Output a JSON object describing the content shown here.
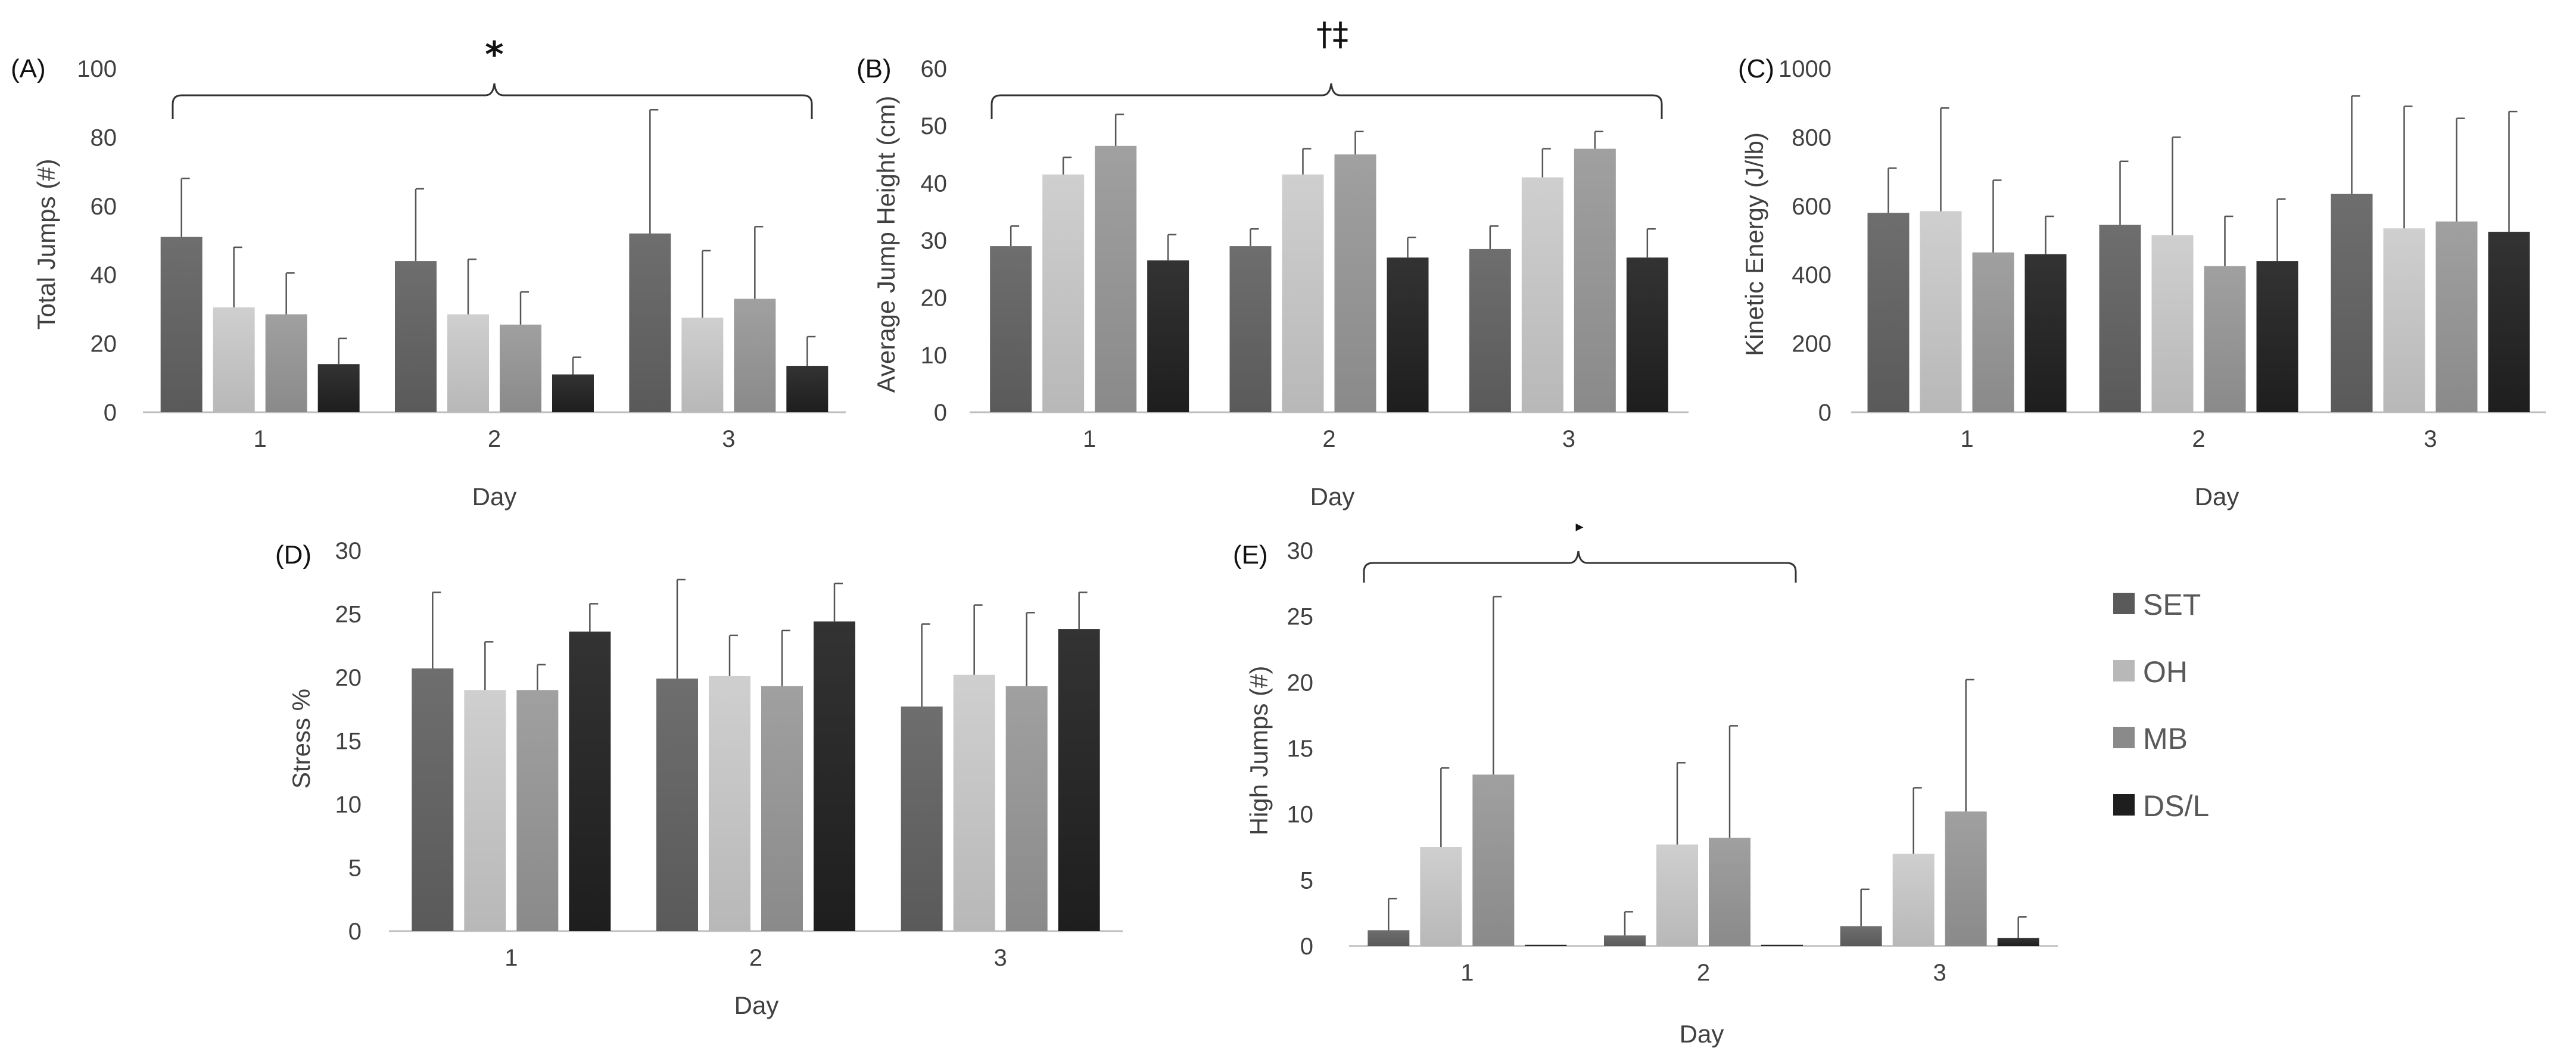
{
  "figure": {
    "legend": [
      {
        "name": "SET",
        "color": "#5a5a5a"
      },
      {
        "name": "OH",
        "color": "#b8b8b8"
      },
      {
        "name": "MB",
        "color": "#8a8a8a"
      },
      {
        "name": "DS/L",
        "color": "#1e1e1e"
      }
    ],
    "bar_gradient_top": {
      "SET": "#6e6e6e",
      "OH": "#cfcfcf",
      "MB": "#a0a0a0",
      "DS/L": "#333333"
    }
  },
  "chart_data": [
    {
      "type": "bar",
      "panel_label": "(A)",
      "xlabel": "Day",
      "ylabel": "Total Jumps (#)",
      "categories": [
        "1",
        "2",
        "3"
      ],
      "ylim": [
        0,
        100
      ],
      "yticks": [
        0,
        20,
        40,
        60,
        80,
        100
      ],
      "series": [
        {
          "name": "SET",
          "values": [
            51,
            44,
            52
          ],
          "errors": [
            17,
            21,
            36
          ]
        },
        {
          "name": "OH",
          "values": [
            30.5,
            28.5,
            27.5
          ],
          "errors": [
            17.5,
            16,
            19.5
          ]
        },
        {
          "name": "MB",
          "values": [
            28.5,
            25.5,
            33
          ],
          "errors": [
            12,
            9.5,
            21
          ]
        },
        {
          "name": "DS/L",
          "values": [
            14,
            11,
            13.5
          ],
          "errors": [
            7.5,
            5,
            8.5
          ]
        }
      ],
      "annotation": "*"
    },
    {
      "type": "bar",
      "panel_label": "(B)",
      "xlabel": "Day",
      "ylabel": "Average Jump Height (cm)",
      "categories": [
        "1",
        "2",
        "3"
      ],
      "ylim": [
        0,
        60
      ],
      "yticks": [
        0,
        10,
        20,
        30,
        40,
        50,
        60
      ],
      "series": [
        {
          "name": "SET",
          "values": [
            29,
            29,
            28.5
          ],
          "errors": [
            3.5,
            3,
            4
          ]
        },
        {
          "name": "OH",
          "values": [
            41.5,
            41.5,
            41
          ],
          "errors": [
            3,
            4.5,
            5
          ]
        },
        {
          "name": "MB",
          "values": [
            46.5,
            45,
            46
          ],
          "errors": [
            5.5,
            4,
            3
          ]
        },
        {
          "name": "DS/L",
          "values": [
            26.5,
            27,
            27
          ],
          "errors": [
            4.5,
            3.5,
            5
          ]
        }
      ],
      "annotation": "†‡"
    },
    {
      "type": "bar",
      "panel_label": "(C)",
      "xlabel": "Day",
      "ylabel": "Kinetic Energy (J/lb)",
      "categories": [
        "1",
        "2",
        "3"
      ],
      "ylim": [
        0,
        1000
      ],
      "yticks": [
        0,
        200,
        400,
        600,
        800,
        1000
      ],
      "series": [
        {
          "name": "SET",
          "values": [
            580,
            545,
            635
          ],
          "errors": [
            130,
            185,
            285
          ]
        },
        {
          "name": "OH",
          "values": [
            585,
            515,
            535
          ],
          "errors": [
            300,
            285,
            355
          ]
        },
        {
          "name": "MB",
          "values": [
            465,
            425,
            555
          ],
          "errors": [
            210,
            145,
            300
          ]
        },
        {
          "name": "DS/L",
          "values": [
            460,
            440,
            525
          ],
          "errors": [
            110,
            180,
            350
          ]
        }
      ]
    },
    {
      "type": "bar",
      "panel_label": "(D)",
      "xlabel": "Day",
      "ylabel": "Stress %",
      "categories": [
        "1",
        "2",
        "3"
      ],
      "ylim": [
        0,
        30
      ],
      "yticks": [
        0,
        5,
        10,
        15,
        20,
        25,
        30
      ],
      "series": [
        {
          "name": "SET",
          "values": [
            20.7,
            19.9,
            17.7
          ],
          "errors": [
            6,
            7.8,
            6.5
          ]
        },
        {
          "name": "OH",
          "values": [
            19,
            20.1,
            20.2
          ],
          "errors": [
            3.8,
            3.2,
            5.5
          ]
        },
        {
          "name": "MB",
          "values": [
            19,
            19.3,
            19.3
          ],
          "errors": [
            2,
            4.4,
            5.8
          ]
        },
        {
          "name": "DS/L",
          "values": [
            23.6,
            24.4,
            23.8
          ],
          "errors": [
            2.2,
            3,
            2.9
          ]
        }
      ]
    },
    {
      "type": "bar",
      "panel_label": "(E)",
      "xlabel": "Day",
      "ylabel": "High Jumps (#)",
      "categories": [
        "1",
        "2",
        "3"
      ],
      "ylim": [
        0,
        30
      ],
      "yticks": [
        0,
        5,
        10,
        15,
        20,
        25,
        30
      ],
      "series": [
        {
          "name": "SET",
          "values": [
            1.2,
            0.8,
            1.5
          ],
          "errors": [
            2.4,
            1.8,
            2.8
          ]
        },
        {
          "name": "OH",
          "values": [
            7.5,
            7.7,
            7
          ],
          "errors": [
            6,
            6.2,
            5
          ]
        },
        {
          "name": "MB",
          "values": [
            13,
            8.2,
            10.2
          ],
          "errors": [
            13.5,
            8.5,
            10
          ]
        },
        {
          "name": "DS/L",
          "values": [
            0.1,
            0.1,
            0.6
          ],
          "errors": [
            0,
            0,
            1.6
          ]
        }
      ],
      "annotation": "▸"
    }
  ]
}
